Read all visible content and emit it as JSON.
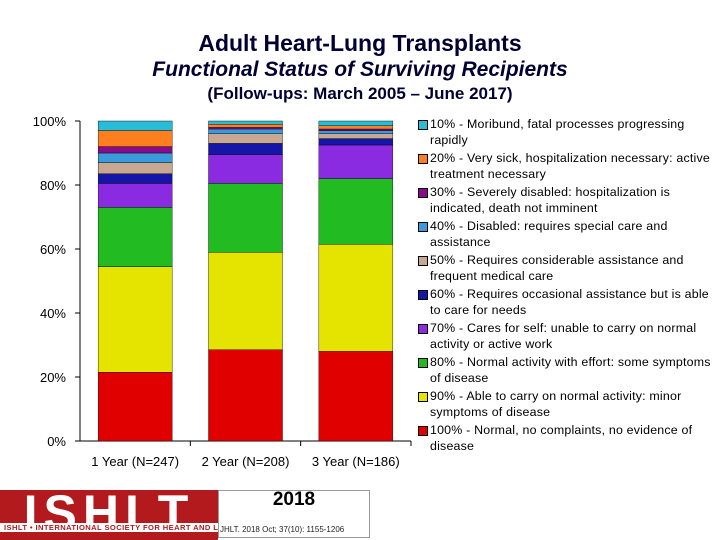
{
  "title": "Adult Heart-Lung Transplants",
  "subtitle": "Functional Status of Surviving Recipients",
  "followup": "(Follow-ups: March 2005 – June 2017)",
  "chart_data": {
    "type": "stacked-bar-100",
    "categories": [
      "1 Year (N=247)",
      "2 Year (N=208)",
      "3 Year (N=186)"
    ],
    "y_ticks": [
      "0%",
      "20%",
      "40%",
      "60%",
      "80%",
      "100%"
    ],
    "ylim": [
      0,
      100
    ],
    "grid": false,
    "legend_position": "right",
    "series": [
      {
        "name": "100% - Normal, no complaints, no evidence of disease",
        "color": "#e00000",
        "values": [
          21.5,
          28.5,
          28.0
        ]
      },
      {
        "name": "90% - Able to carry on normal activity: minor symptoms of disease",
        "color": "#e4e400",
        "values": [
          33.0,
          30.5,
          33.5
        ]
      },
      {
        "name": "80% - Normal activity with effort: some symptoms of disease",
        "color": "#22bb22",
        "values": [
          18.5,
          21.5,
          20.5
        ]
      },
      {
        "name": "70% - Cares for self: unable to carry on normal activity or active work",
        "color": "#8a2be2",
        "values": [
          7.5,
          9.0,
          10.5
        ]
      },
      {
        "name": "60% - Requires occasional assistance but is able to care for needs",
        "color": "#1515a8",
        "values": [
          3.0,
          3.5,
          2.0
        ]
      },
      {
        "name": "50% - Requires considerable assistance and frequent medical care",
        "color": "#c8a890",
        "values": [
          3.5,
          3.0,
          1.5
        ]
      },
      {
        "name": "40% - Disabled: requires special care and assistance",
        "color": "#3a9adc",
        "values": [
          3.0,
          1.5,
          1.0
        ]
      },
      {
        "name": "30% - Severely disabled: hospitalization is indicated, death not imminent",
        "color": "#8b0a8b",
        "values": [
          2.0,
          0.5,
          0.5
        ]
      },
      {
        "name": "20% - Very sick, hospitalization necessary: active treatment necessary",
        "color": "#ff7f1e",
        "values": [
          5.0,
          1.0,
          1.0
        ]
      },
      {
        "name": "10% - Moribund, fatal processes progressing rapidly",
        "color": "#28bcd6",
        "values": [
          3.0,
          1.0,
          1.5
        ]
      }
    ]
  },
  "footer": {
    "logo_text": "ISHLT",
    "tagline": "ISHLT • INTERNATIONAL SOCIETY FOR HEART AND LUNG TRANSPLANTATION",
    "year": "2018",
    "citation": "JHLT. 2018 Oct; 37(10): 1155-1206"
  }
}
